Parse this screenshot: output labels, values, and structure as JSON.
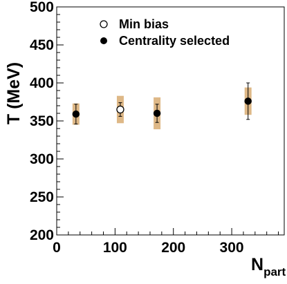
{
  "chart_data": {
    "type": "scatter",
    "title": "",
    "xlabel": "N",
    "xlabel_sub": "part",
    "ylabel": "T (MeV)",
    "xlim": [
      0,
      390
    ],
    "ylim": [
      200,
      500
    ],
    "x_ticks": [
      0,
      100,
      200,
      300
    ],
    "y_ticks": [
      200,
      250,
      300,
      350,
      400,
      450,
      500
    ],
    "grid": false,
    "legend_position": "top-left",
    "series": [
      {
        "name": "Min bias",
        "marker": "open-circle",
        "points": [
          {
            "x": 109,
            "y": 365,
            "stat_err": 9,
            "syst_err": 18
          }
        ]
      },
      {
        "name": "Centrality selected",
        "marker": "filled-circle",
        "points": [
          {
            "x": 33,
            "y": 359,
            "stat_err": 13,
            "syst_err": 14
          },
          {
            "x": 172,
            "y": 360,
            "stat_err": 12,
            "syst_err": 21
          },
          {
            "x": 328,
            "y": 376,
            "stat_err": 24,
            "syst_err": 18
          }
        ]
      }
    ],
    "colors": {
      "syst_band": "#deb887",
      "marker": "#000000"
    }
  }
}
